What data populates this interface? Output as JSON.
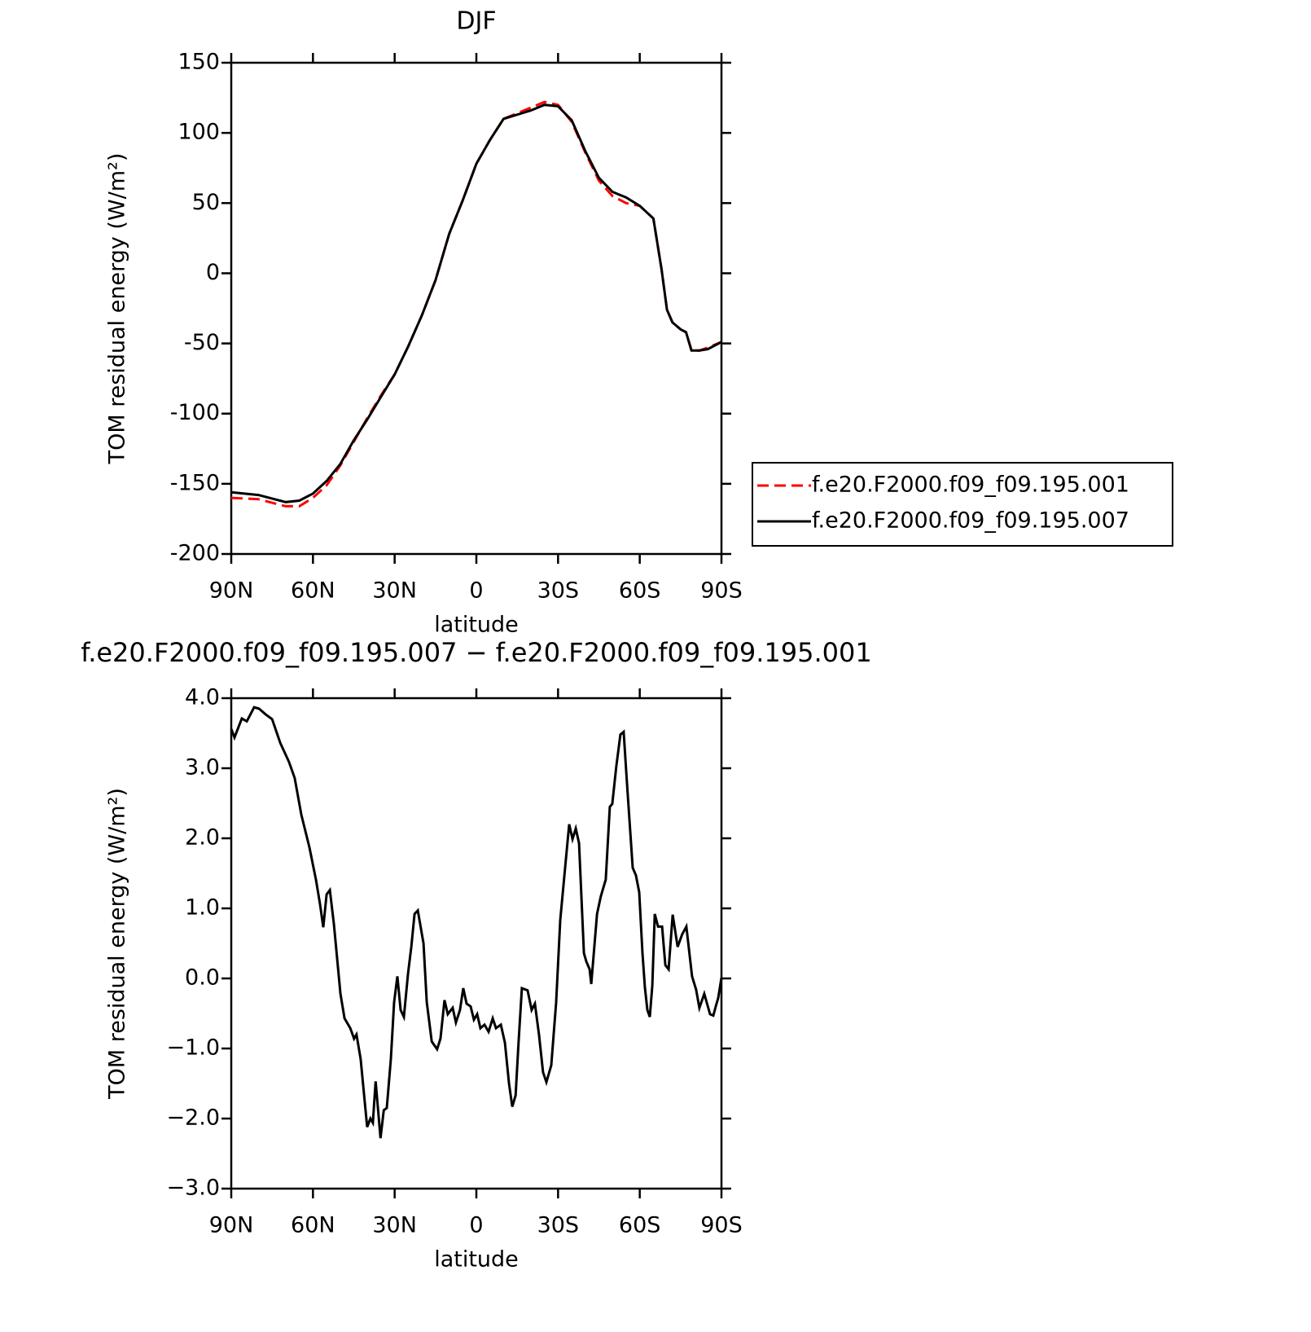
{
  "chart_data": [
    {
      "type": "line",
      "title": "DJF",
      "xlabel": "latitude",
      "ylabel": "TOM residual energy (W/m²)",
      "x": [
        90,
        80,
        70,
        65,
        60,
        55,
        50,
        45,
        40,
        35,
        30,
        25,
        20,
        15,
        10,
        5,
        0,
        -5,
        -10,
        -15,
        -20,
        -25,
        -30,
        -35,
        -40,
        -45,
        -50,
        -55,
        -60,
        -65,
        -68,
        -70,
        -72,
        -75,
        -77,
        -79,
        -82,
        -85,
        -90
      ],
      "series": [
        {
          "name": "f.e20.F2000.f09_f09.195.001",
          "color": "#ff0000",
          "dash": true,
          "values": [
            -160,
            -161,
            -166,
            -166,
            -160,
            -151,
            -137,
            -120,
            -103,
            -87,
            -72,
            -52,
            -30,
            -5,
            28,
            52,
            78,
            95,
            110,
            114,
            118,
            122,
            120,
            108,
            86,
            66,
            55,
            50,
            48,
            39,
            3,
            -26,
            -35,
            -40,
            -42,
            -55,
            -55,
            -53,
            -49
          ]
        },
        {
          "name": "f.e20.F2000.f09_f09.195.007",
          "color": "#000000",
          "dash": false,
          "values": [
            -156,
            -158,
            -163,
            -162,
            -157,
            -148,
            -136,
            -119,
            -104,
            -88,
            -72,
            -52,
            -30,
            -5,
            28,
            52,
            78,
            95,
            110,
            113,
            116,
            120,
            119,
            109,
            87,
            68,
            58,
            54,
            48,
            39,
            3,
            -26,
            -35,
            -40,
            -42,
            -55,
            -55,
            -54,
            -49
          ]
        }
      ],
      "xlim": [
        90,
        -90
      ],
      "xticks": [
        {
          "value": 90,
          "label": "90N"
        },
        {
          "value": 60,
          "label": "60N"
        },
        {
          "value": 30,
          "label": "30N"
        },
        0,
        {
          "value": -30,
          "label": "30S"
        },
        {
          "value": -60,
          "label": "60S"
        },
        {
          "value": -90,
          "label": "90S"
        }
      ],
      "ylim": [
        -200,
        150
      ],
      "yticks": [
        -200,
        -150,
        -100,
        -50,
        0,
        50,
        100,
        150
      ],
      "legend": "right"
    },
    {
      "type": "line",
      "title": "f.e20.F2000.f09_f09.195.007 − f.e20.F2000.f09_f09.195.001",
      "xlabel": "latitude",
      "ylabel": "TOM residual energy (W/m²)",
      "x": [
        90,
        88.8,
        86.1,
        84.3,
        81.6,
        79.8,
        77.4,
        75.0,
        72.0,
        68.8,
        66.7,
        64.3,
        61.3,
        58.9,
        57.4,
        56.2,
        55.0,
        53.8,
        52.3,
        49.9,
        48.4,
        46.3,
        44.9,
        44.0,
        42.5,
        40.1,
        38.9,
        38.0,
        37.0,
        35.2,
        34.0,
        32.9,
        31.4,
        30.2,
        29.0,
        27.8,
        26.6,
        25.1,
        23.9,
        22.7,
        21.5,
        19.4,
        18.2,
        16.4,
        14.4,
        13.2,
        11.7,
        10.5,
        8.7,
        7.5,
        6.0,
        4.8,
        3.6,
        2.1,
        0.9,
        -0.3,
        -1.5,
        -3.0,
        -4.5,
        -6.0,
        -7.2,
        -9.0,
        -10.5,
        -12.0,
        -13.2,
        -14.4,
        -15.5,
        -16.7,
        -18.8,
        -20.3,
        -21.5,
        -23.0,
        -24.5,
        -25.7,
        -27.5,
        -29.3,
        -30.8,
        -32.6,
        -34.1,
        -35.3,
        -36.5,
        -37.7,
        -39.5,
        -40.4,
        -41.6,
        -42.2,
        -44.3,
        -45.7,
        -47.5,
        -49.0,
        -49.9,
        -51.4,
        -52.9,
        -54.1,
        -55.3,
        -57.4,
        -58.6,
        -59.8,
        -61.0,
        -61.9,
        -62.8,
        -63.7,
        -64.6,
        -65.5,
        -66.7,
        -68.2,
        -69.4,
        -70.6,
        -72.1,
        -73.9,
        -75.6,
        -77.1,
        -79.2,
        -80.7,
        -81.9,
        -83.7,
        -85.8,
        -87.0,
        -87.9,
        -88.8,
        -90
      ],
      "series": [
        {
          "name": null,
          "color": "#000000",
          "dash": false,
          "values": [
            3.56,
            3.44,
            3.71,
            3.67,
            3.87,
            3.85,
            3.77,
            3.7,
            3.36,
            3.09,
            2.86,
            2.34,
            1.87,
            1.41,
            1.06,
            0.73,
            1.2,
            1.26,
            0.77,
            -0.22,
            -0.57,
            -0.71,
            -0.86,
            -0.8,
            -1.15,
            -2.12,
            -2.0,
            -2.06,
            -1.47,
            -2.28,
            -1.88,
            -1.85,
            -1.15,
            -0.34,
            0.03,
            -0.45,
            -0.55,
            0.07,
            0.45,
            0.92,
            0.97,
            0.5,
            -0.34,
            -0.9,
            -1.01,
            -0.86,
            -0.31,
            -0.51,
            -0.42,
            -0.63,
            -0.45,
            -0.14,
            -0.36,
            -0.4,
            -0.59,
            -0.51,
            -0.71,
            -0.66,
            -0.76,
            -0.57,
            -0.71,
            -0.66,
            -0.92,
            -1.5,
            -1.83,
            -1.67,
            -0.92,
            -0.14,
            -0.17,
            -0.45,
            -0.36,
            -0.8,
            -1.34,
            -1.48,
            -1.24,
            -0.34,
            0.83,
            1.58,
            2.2,
            1.99,
            2.14,
            1.93,
            0.36,
            0.24,
            0.13,
            -0.08,
            0.92,
            1.17,
            1.41,
            2.45,
            2.49,
            3.03,
            3.48,
            3.52,
            2.8,
            1.58,
            1.47,
            1.23,
            0.36,
            -0.13,
            -0.45,
            -0.55,
            -0.1,
            0.92,
            0.74,
            0.74,
            0.19,
            0.13,
            0.91,
            0.45,
            0.63,
            0.74,
            0.03,
            -0.16,
            -0.42,
            -0.22,
            -0.51,
            -0.53,
            -0.4,
            -0.28,
            0.01
          ]
        }
      ],
      "xlim": [
        90,
        -90
      ],
      "xticks": [
        {
          "value": 90,
          "label": "90N"
        },
        {
          "value": 60,
          "label": "60N"
        },
        {
          "value": 30,
          "label": "30N"
        },
        0,
        {
          "value": -30,
          "label": "30S"
        },
        {
          "value": -60,
          "label": "60S"
        },
        {
          "value": -90,
          "label": "90S"
        }
      ],
      "ylim": [
        -3,
        4
      ],
      "yticks": [
        {
          "value": -3,
          "label": "−3.0"
        },
        {
          "value": -2,
          "label": "−2.0"
        },
        {
          "value": -1,
          "label": "−1.0"
        },
        {
          "value": 0,
          "label": "0.0"
        },
        {
          "value": 1,
          "label": "1.0"
        },
        {
          "value": 2,
          "label": "2.0"
        },
        {
          "value": 3,
          "label": "3.0"
        },
        {
          "value": 4,
          "label": "4.0"
        }
      ]
    }
  ]
}
